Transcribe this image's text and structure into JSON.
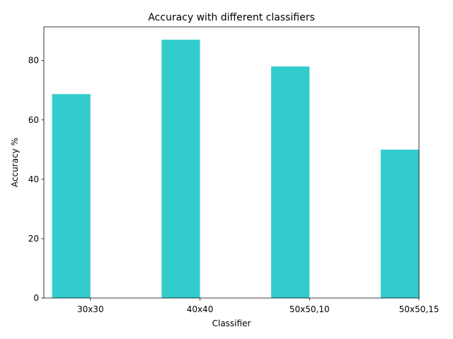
{
  "chart_data": {
    "type": "bar",
    "title": "Accuracy with different classifiers",
    "xlabel": "Classifier",
    "ylabel": "Accuracy %",
    "categories": [
      "30x30",
      "40x40",
      "50x50,10",
      "50x50,15"
    ],
    "values": [
      68.7,
      87.0,
      78.0,
      50.0
    ],
    "ylim": [
      0,
      91.35
    ],
    "yticks": [
      0,
      20,
      40,
      60,
      80
    ],
    "grid": false,
    "bar_color": "#33cccc"
  }
}
